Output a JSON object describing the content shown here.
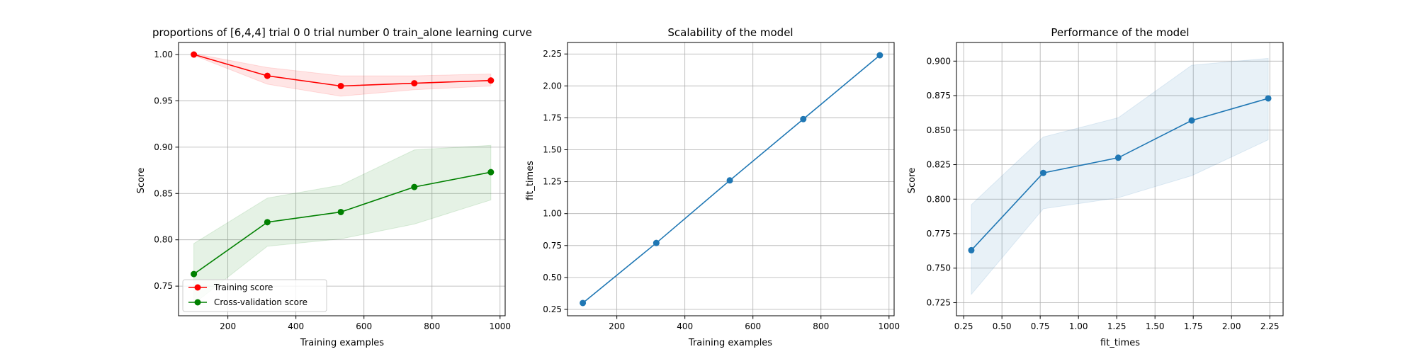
{
  "chart_data": [
    {
      "type": "line",
      "title": "proportions of [6,4,4] trial 0 0 trial number 0 train_alone learning curve",
      "xlabel": "Training examples",
      "ylabel": "Score",
      "xlim": [
        55,
        1015
      ],
      "ylim": [
        0.718,
        1.013
      ],
      "xticks": [
        200,
        400,
        600,
        800,
        1000
      ],
      "yticks": [
        0.75,
        0.8,
        0.85,
        0.9,
        0.95,
        1.0
      ],
      "ytick_labels": [
        "0.75",
        "0.80",
        "0.85",
        "0.90",
        "0.95",
        "1.00"
      ],
      "grid": true,
      "legend": "lower-left",
      "x": [
        100,
        316,
        532,
        748,
        973
      ],
      "series": [
        {
          "name": "Training score",
          "color": "#ff0000",
          "values": [
            1.0,
            0.977,
            0.966,
            0.969,
            0.972
          ],
          "band_lower": [
            0.999,
            0.968,
            0.955,
            0.962,
            0.966
          ],
          "band_upper": [
            1.001,
            0.986,
            0.977,
            0.977,
            0.979
          ]
        },
        {
          "name": "Cross-validation score",
          "color": "#008000",
          "values": [
            0.763,
            0.819,
            0.83,
            0.857,
            0.873
          ],
          "band_lower": [
            0.731,
            0.793,
            0.801,
            0.817,
            0.843
          ],
          "band_upper": [
            0.796,
            0.845,
            0.859,
            0.897,
            0.902
          ]
        }
      ]
    },
    {
      "type": "line",
      "title": "Scalability of the model",
      "xlabel": "Training examples",
      "ylabel": "fit_times",
      "xlim": [
        55,
        1015
      ],
      "ylim": [
        0.2,
        2.34
      ],
      "xticks": [
        200,
        400,
        600,
        800,
        1000
      ],
      "yticks": [
        0.25,
        0.5,
        0.75,
        1.0,
        1.25,
        1.5,
        1.75,
        2.0,
        2.25
      ],
      "ytick_labels": [
        "0.25",
        "0.50",
        "0.75",
        "1.00",
        "1.25",
        "1.50",
        "1.75",
        "2.00",
        "2.25"
      ],
      "grid": true,
      "x": [
        100,
        316,
        532,
        748,
        973
      ],
      "series": [
        {
          "color": "#1f77b4",
          "values": [
            0.3,
            0.77,
            1.26,
            1.74,
            2.24
          ],
          "band_lower": [
            0.3,
            0.77,
            1.26,
            1.74,
            2.24
          ],
          "band_upper": [
            0.3,
            0.77,
            1.26,
            1.74,
            2.24
          ]
        }
      ]
    },
    {
      "type": "line",
      "title": "Performance of the model",
      "xlabel": "fit_times",
      "ylabel": "Score",
      "xlim": [
        0.203,
        2.337
      ],
      "ylim": [
        0.7155,
        0.9135
      ],
      "xticks": [
        0.25,
        0.5,
        0.75,
        1.0,
        1.25,
        1.5,
        1.75,
        2.0,
        2.25
      ],
      "xtick_labels": [
        "0.25",
        "0.50",
        "0.75",
        "1.00",
        "1.25",
        "1.50",
        "1.75",
        "2.00",
        "2.25"
      ],
      "yticks": [
        0.725,
        0.75,
        0.775,
        0.8,
        0.825,
        0.85,
        0.875,
        0.9
      ],
      "ytick_labels": [
        "0.725",
        "0.750",
        "0.775",
        "0.800",
        "0.825",
        "0.850",
        "0.875",
        "0.900"
      ],
      "grid": true,
      "x": [
        0.3,
        0.77,
        1.26,
        1.74,
        2.24
      ],
      "series": [
        {
          "color": "#1f77b4",
          "values": [
            0.763,
            0.819,
            0.83,
            0.857,
            0.873
          ],
          "band_lower": [
            0.731,
            0.793,
            0.801,
            0.817,
            0.843
          ],
          "band_upper": [
            0.796,
            0.845,
            0.859,
            0.897,
            0.902
          ]
        }
      ]
    }
  ]
}
